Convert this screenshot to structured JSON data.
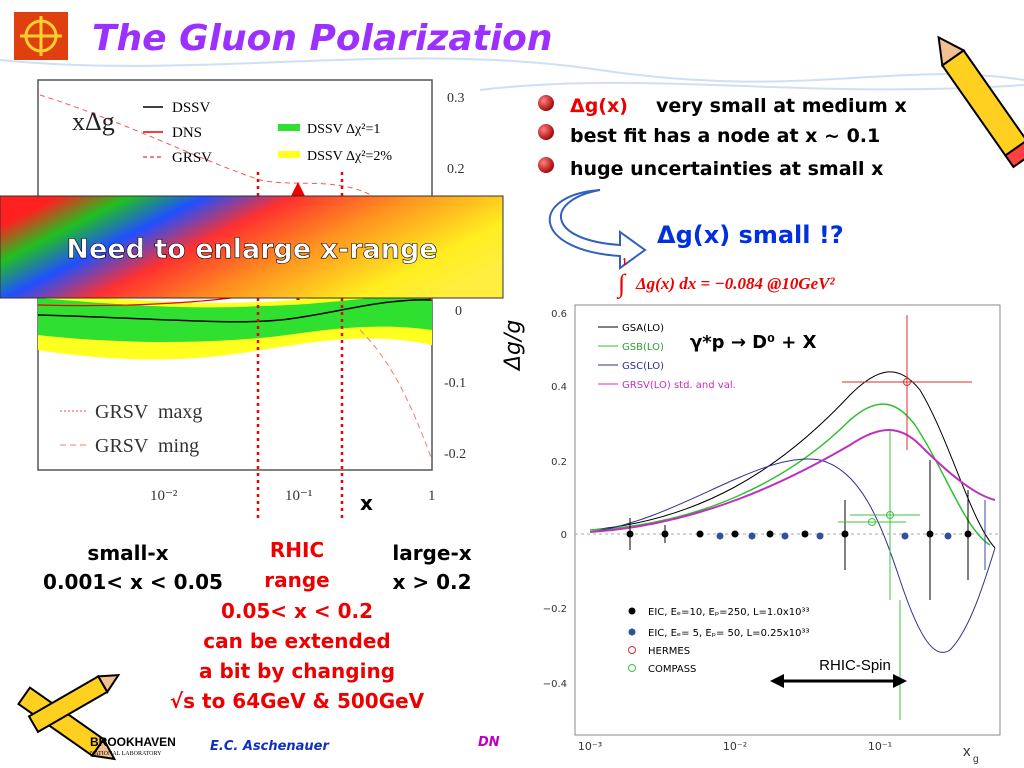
{
  "title": "The Gluon Polarization",
  "bullets": [
    {
      "highlight": "Δg(x)",
      "text": "very small at medium x"
    },
    {
      "text": "best fit has a node at x ~ 0.1"
    },
    {
      "text": "huge uncertainties at small x"
    }
  ],
  "conclusion": "Δg(x) small !?",
  "integral": {
    "upper": "1",
    "expression": "Δg(x) dx = −0.084 @10GeV²"
  },
  "banner": "Need to enlarge x-range",
  "left_plot": {
    "y_label": "xΔg",
    "legend": [
      "DSSV",
      "DNS",
      "GRSV"
    ],
    "band_legend": [
      "DSSV Δχ²=1",
      "DSSV Δχ²=2%"
    ],
    "grsv_legend": [
      "GRSV  maxg",
      "GRSV  ming"
    ],
    "yticks": [
      "0.3",
      "0.2",
      "0",
      "-0.1",
      "-0.2"
    ],
    "xticks": [
      "10⁻²",
      "10⁻¹",
      "1"
    ],
    "x_label": "x"
  },
  "regions": {
    "small": [
      "small-x",
      "0.001< x < 0.05"
    ],
    "rhic": [
      "RHIC",
      "range"
    ],
    "large": [
      "large-x",
      "x > 0.2"
    ],
    "note": [
      "0.05< x < 0.2",
      "can be extended",
      "a bit by changing",
      "√s to 64GeV & 500GeV"
    ]
  },
  "right_plot": {
    "y_label": "Δg/g",
    "process": "γ*p → D⁰ + X",
    "legend": [
      "GSA(LO)",
      "GSB(LO)",
      "GSC(LO)",
      "GRSV(LO) std. and val."
    ],
    "data_legend": [
      "EIC, Eₑ=10, Eₚ=250, L=1.0x10³³",
      "EIC, Eₑ= 5, Eₚ= 50, L=0.25x10³³",
      "HERMES",
      "COMPASS"
    ],
    "annotation": "RHIC-Spin",
    "yticks": [
      "0.6",
      "0.4",
      "0.2",
      "0",
      "−0.2",
      "−0.4"
    ],
    "xticks": [
      "10⁻³",
      "10⁻²",
      "10⁻¹"
    ],
    "x_label": "x",
    "x_label_sub": "g"
  },
  "footer": {
    "lab": "BROOKHAVEN",
    "lab_sub": "NATIONAL LABORATORY",
    "author": "E.C. Aschenauer",
    "conference": "DN"
  }
}
